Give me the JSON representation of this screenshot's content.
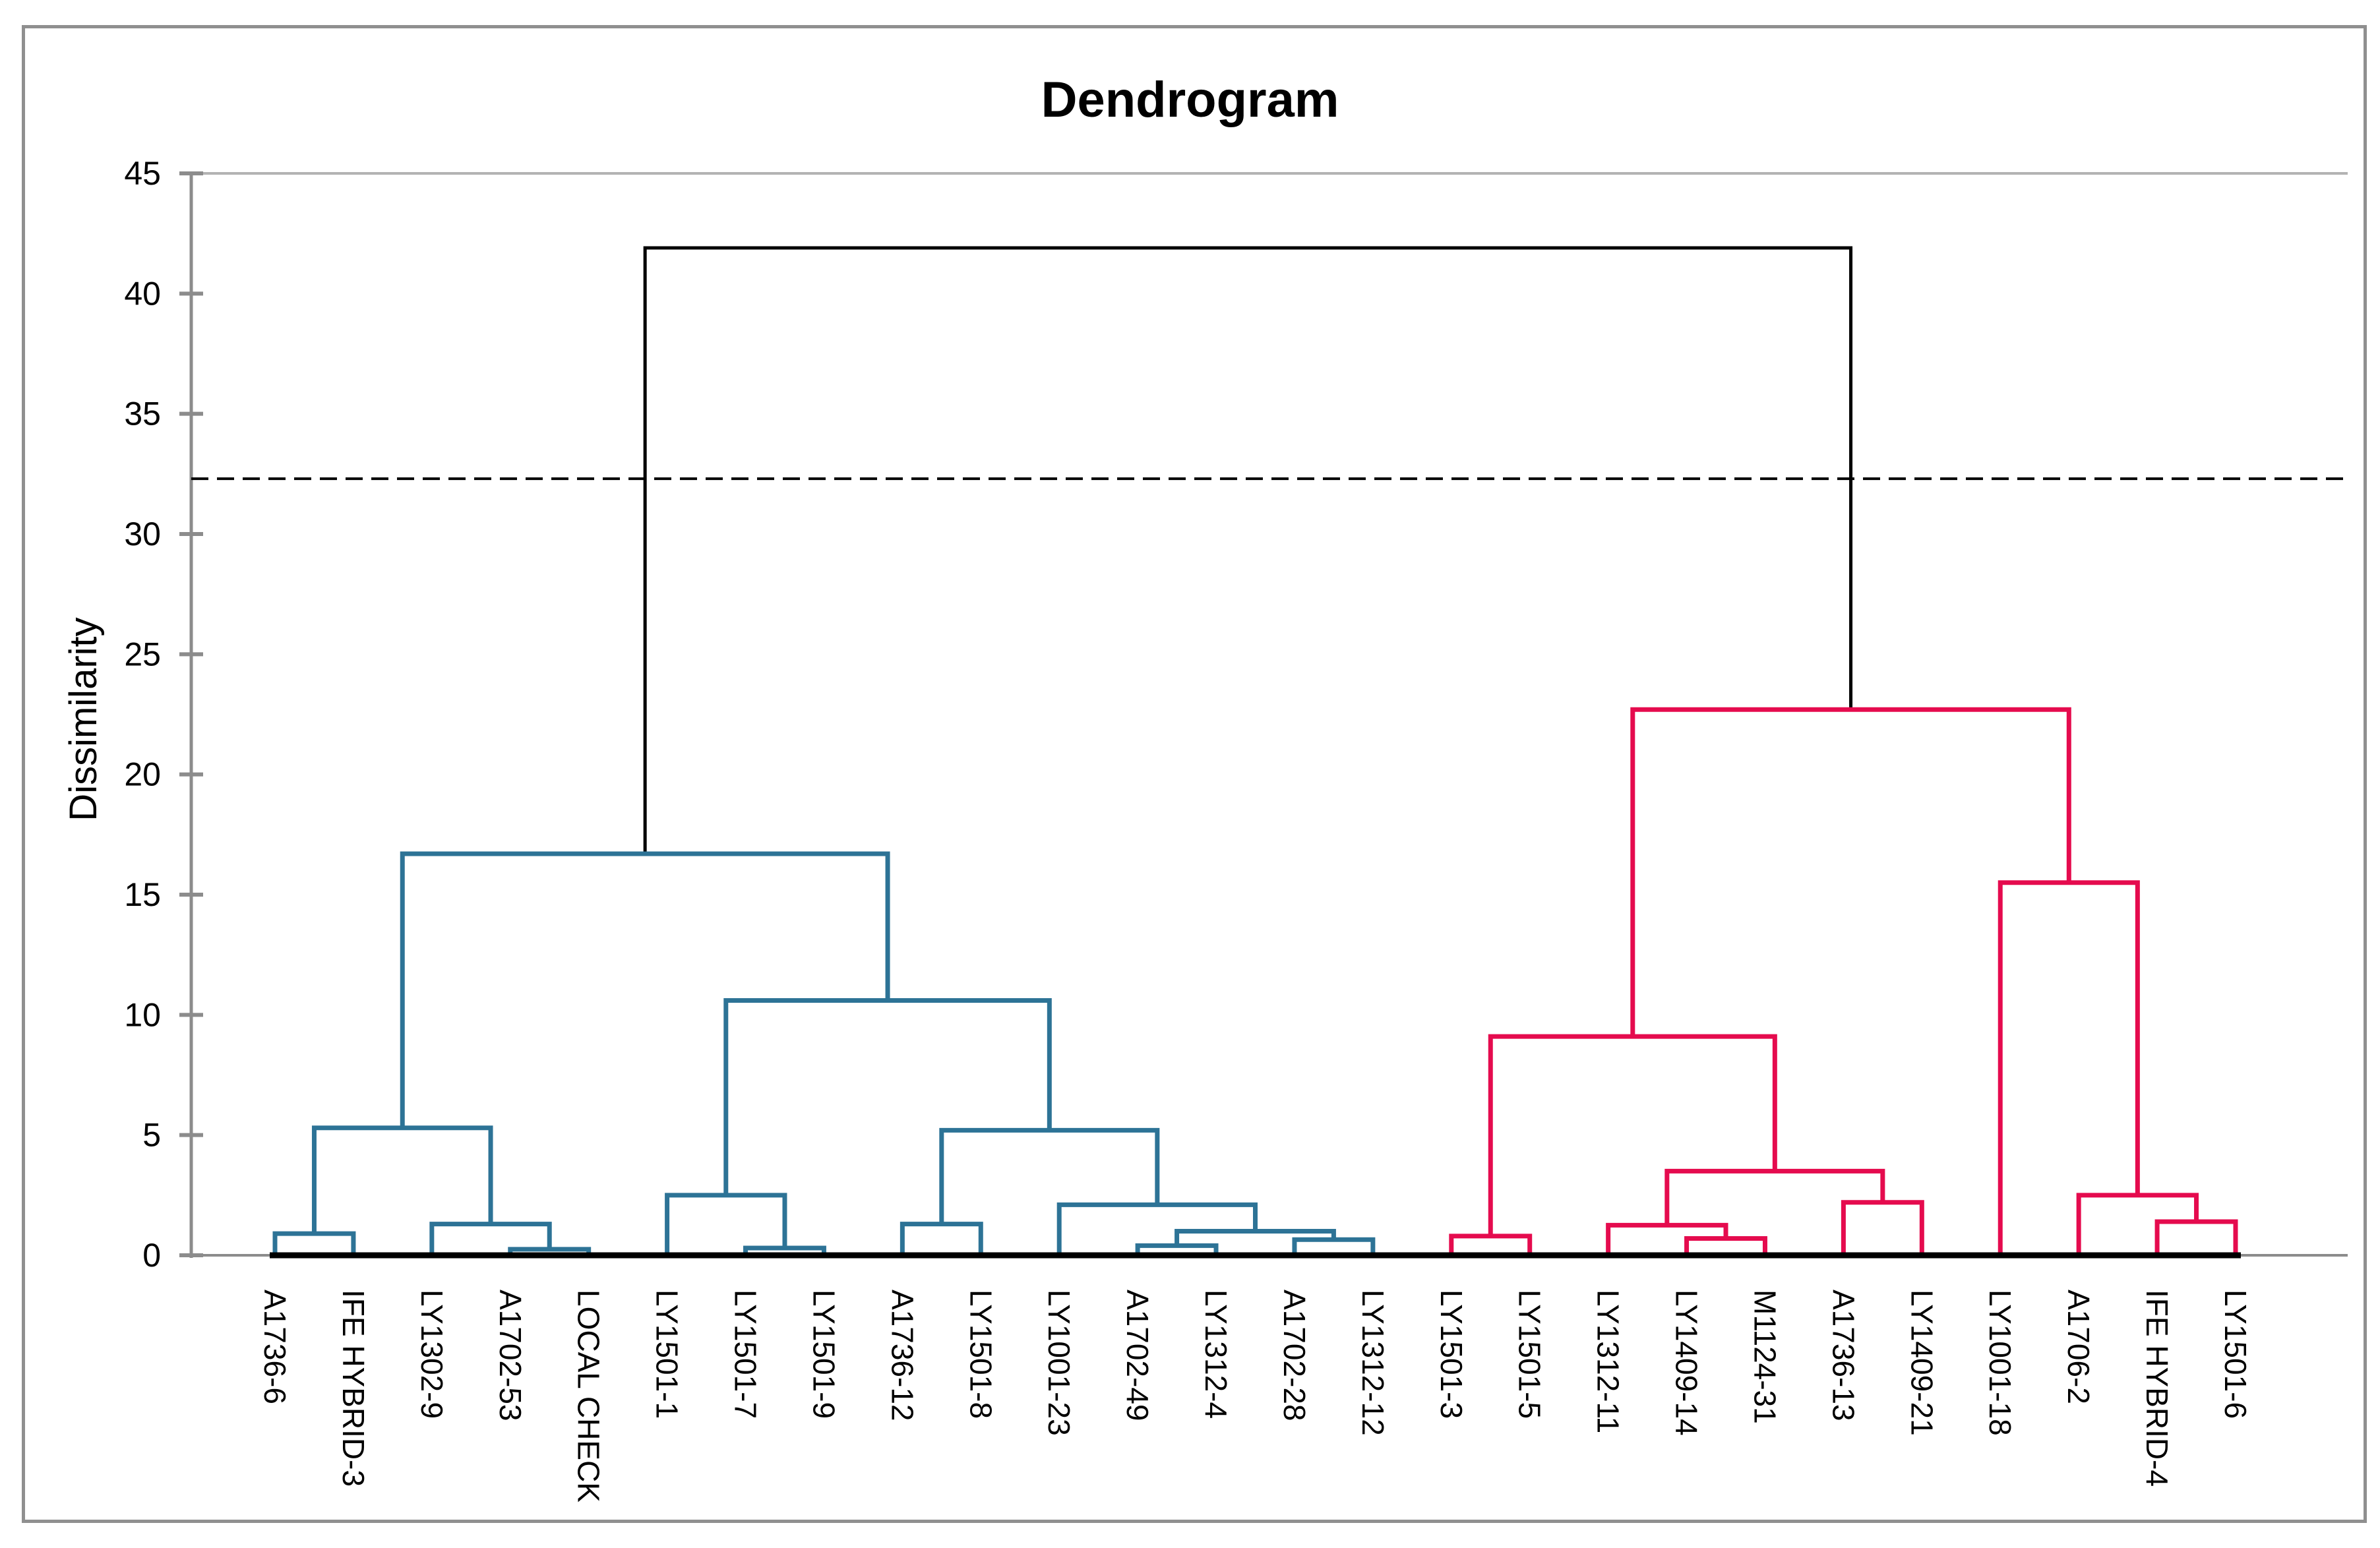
{
  "chart_data": {
    "type": "dendrogram",
    "title": "Dendrogram",
    "ylabel": "Dissimilarity",
    "ylim": [
      0,
      45
    ],
    "yticks": [
      0,
      5,
      10,
      15,
      20,
      25,
      30,
      35,
      40,
      45
    ],
    "grid": "top-border-line-at-45-only",
    "cutoff_line": {
      "value": 32.3,
      "style": "dashed",
      "color": "#000000"
    },
    "root_merge_height": 41.9,
    "leaves": [
      "A1736-6",
      "IFE HYBRID-3",
      "LY1302-9",
      "A1702-53",
      "LOCAL CHECK",
      "LY1501-1",
      "LY1501-7",
      "LY1501-9",
      "A1736-12",
      "LY1501-8",
      "LY1001-23",
      "A1702-49",
      "LY1312-4",
      "A1702-28",
      "LY1312-12",
      "LY1501-3",
      "LY1501-5",
      "LY1312-11",
      "LY1409-14",
      "M1124-31",
      "A1736-13",
      "LY1409-21",
      "LY1001-18",
      "A1706-2",
      "IFE HYBRID-4",
      "LY1501-6"
    ],
    "merges": [
      {
        "a": "L0",
        "b": "L1",
        "h": 0.9,
        "c": "blue"
      },
      {
        "a": "L3",
        "b": "L4",
        "h": 0.25,
        "c": "blue"
      },
      {
        "a": "L2",
        "b": "N1",
        "h": 1.3,
        "c": "blue"
      },
      {
        "a": "N0",
        "b": "N2",
        "h": 5.3,
        "c": "blue"
      },
      {
        "a": "L6",
        "b": "L7",
        "h": 0.3,
        "c": "blue"
      },
      {
        "a": "L5",
        "b": "N4",
        "h": 2.5,
        "c": "blue"
      },
      {
        "a": "L8",
        "b": "L9",
        "h": 1.3,
        "c": "blue"
      },
      {
        "a": "L11",
        "b": "L12",
        "h": 0.4,
        "c": "blue"
      },
      {
        "a": "L13",
        "b": "L14",
        "h": 0.65,
        "c": "blue"
      },
      {
        "a": "N7",
        "b": "N8",
        "h": 1.0,
        "c": "blue"
      },
      {
        "a": "L10",
        "b": "N9",
        "h": 2.1,
        "c": "blue"
      },
      {
        "a": "N6",
        "b": "N10",
        "h": 5.2,
        "c": "blue"
      },
      {
        "a": "N5",
        "b": "N11",
        "h": 10.6,
        "c": "blue"
      },
      {
        "a": "N3",
        "b": "N12",
        "h": 16.7,
        "c": "blue"
      },
      {
        "a": "L15",
        "b": "L16",
        "h": 0.8,
        "c": "red"
      },
      {
        "a": "L18",
        "b": "L19",
        "h": 0.7,
        "c": "red"
      },
      {
        "a": "L17",
        "b": "N15",
        "h": 1.25,
        "c": "red"
      },
      {
        "a": "L20",
        "b": "L21",
        "h": 2.2,
        "c": "red"
      },
      {
        "a": "N16",
        "b": "N17",
        "h": 3.5,
        "c": "red"
      },
      {
        "a": "N14",
        "b": "N18",
        "h": 9.1,
        "c": "red"
      },
      {
        "a": "L24",
        "b": "L25",
        "h": 1.4,
        "c": "red"
      },
      {
        "a": "L23",
        "b": "N20",
        "h": 2.5,
        "c": "red"
      },
      {
        "a": "L22",
        "b": "N21",
        "h": 15.5,
        "c": "red"
      },
      {
        "a": "N19",
        "b": "N22",
        "h": 22.7,
        "c": "red"
      },
      {
        "a": "N13",
        "b": "N23",
        "h": 41.9,
        "c": "black"
      }
    ],
    "colors": {
      "blue": "#2d7396",
      "red": "#e50b4e",
      "black": "#000000",
      "axis_gray": "#8c8c8c",
      "grid_light": "#b3b3b3",
      "frame_gray": "#8f8f8f",
      "baseline_black": "#000000"
    },
    "legend_position": "none"
  }
}
